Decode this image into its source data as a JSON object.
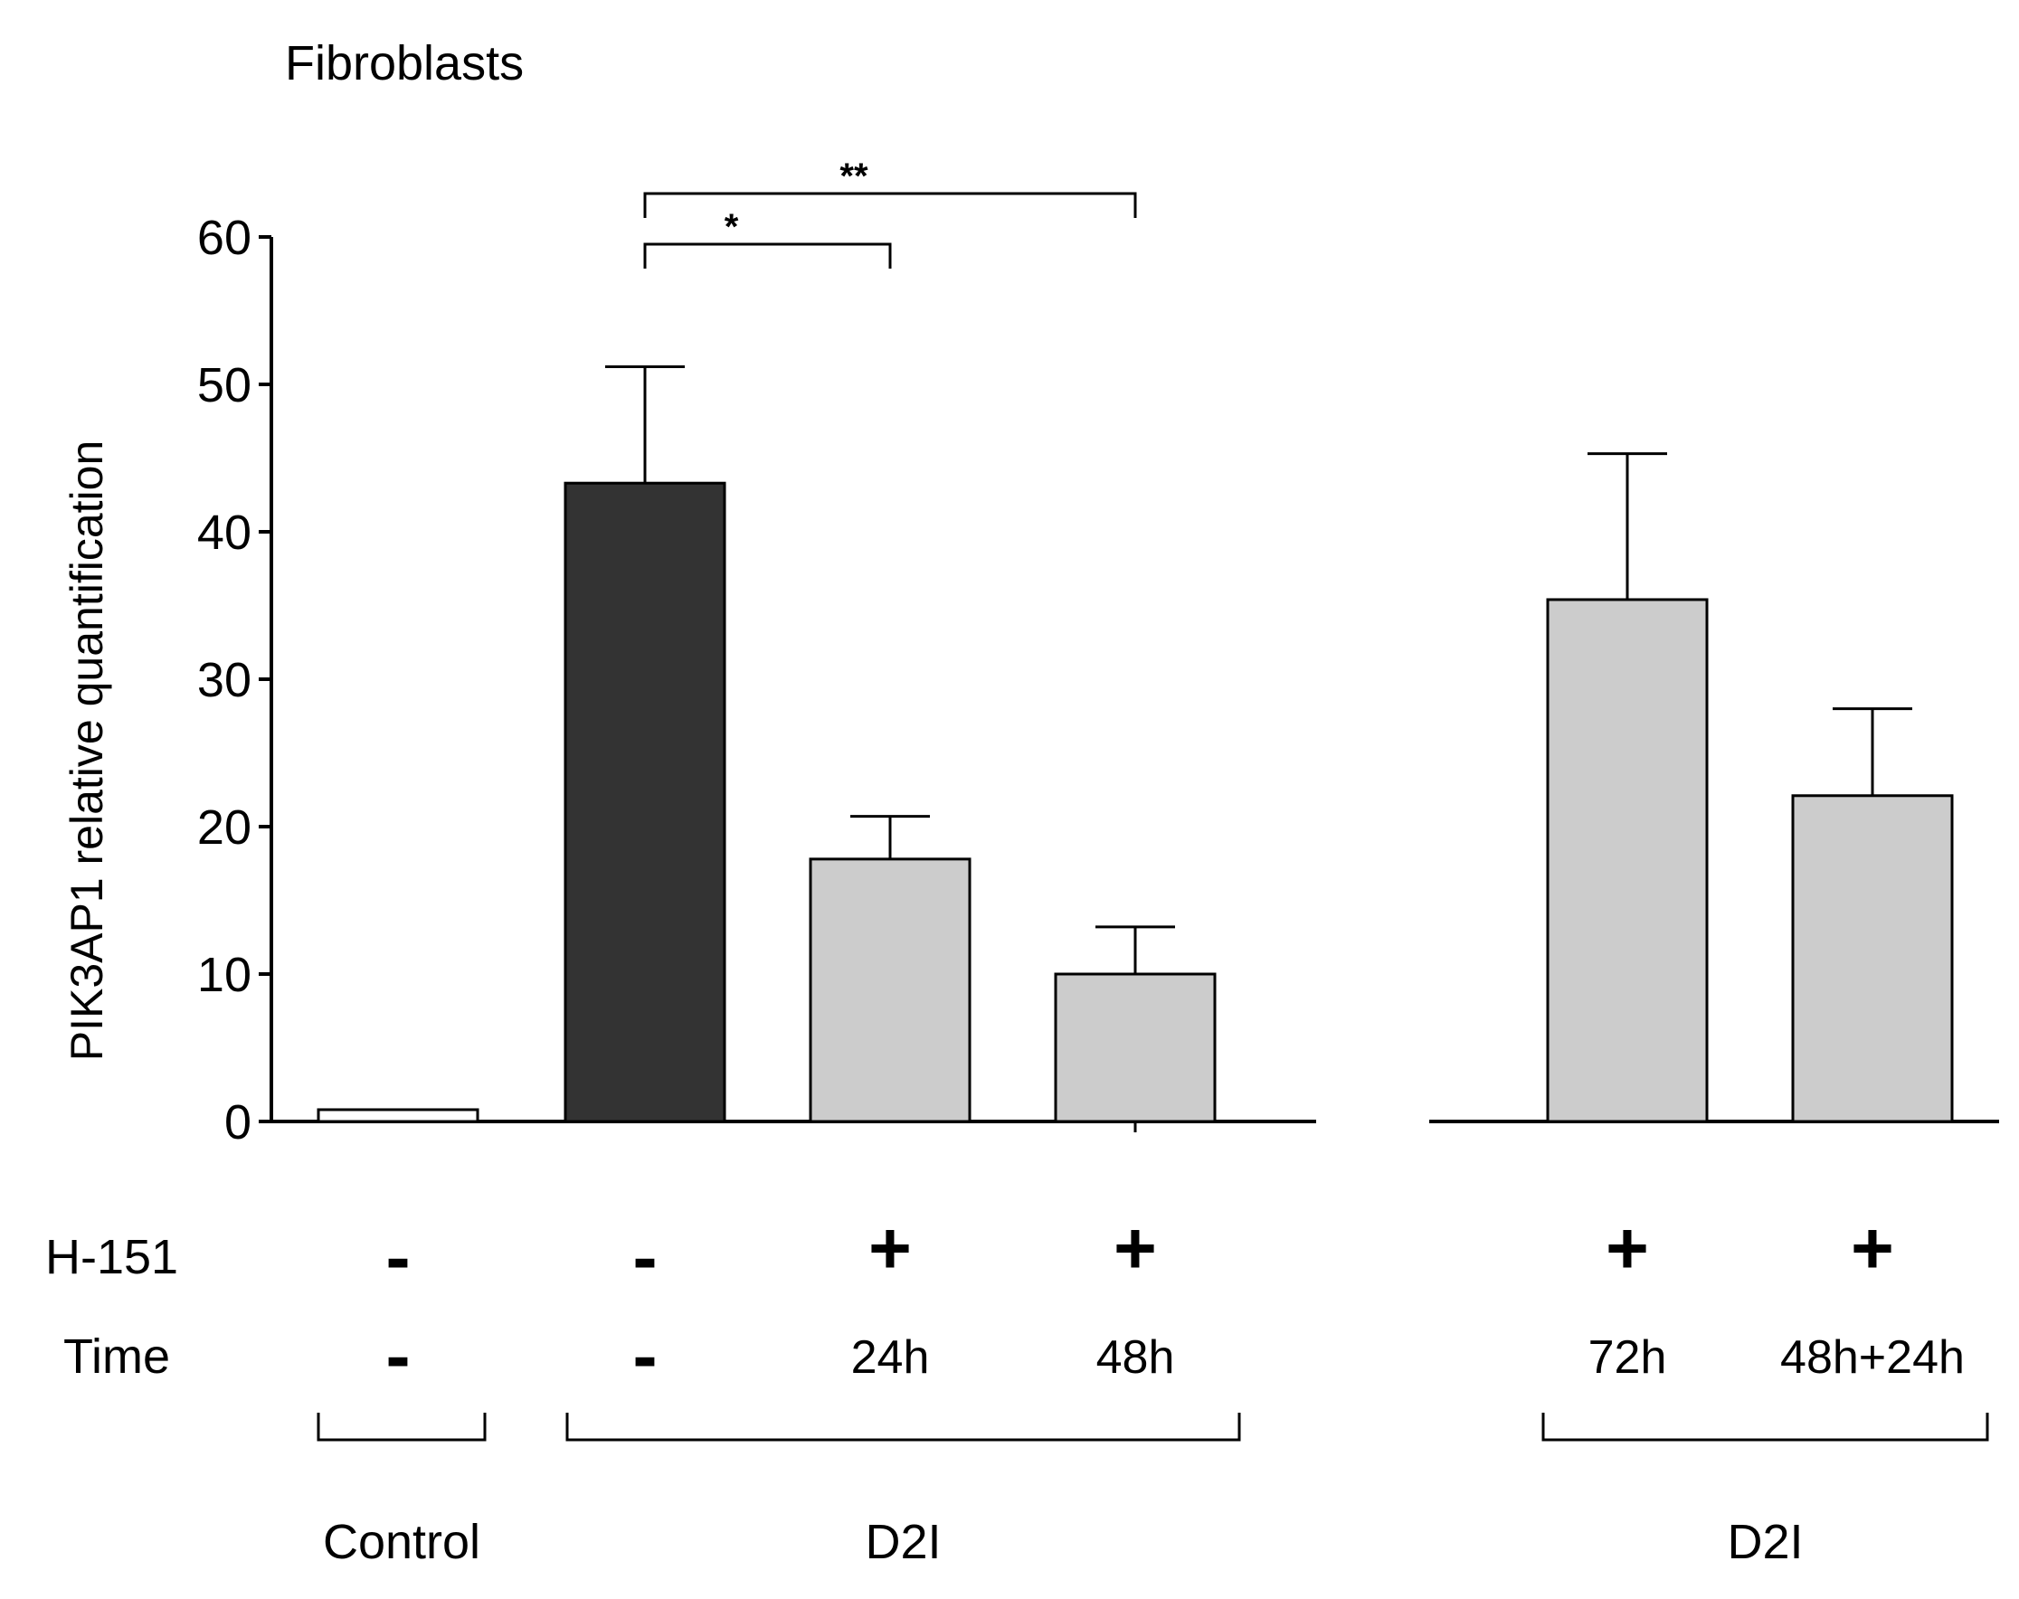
{
  "chart_data": {
    "type": "bar",
    "title": "Fibroblasts",
    "ylabel": "PIK3AP1 relative quantification",
    "xlabel": "",
    "ylim": [
      0,
      60
    ],
    "yticks": [
      0,
      10,
      20,
      30,
      40,
      50,
      60
    ],
    "bars": [
      {
        "name": "control",
        "value": 0.8,
        "error": 0,
        "fill": "#ffffff",
        "h151": "-",
        "time": "-"
      },
      {
        "name": "d2i-untreated",
        "value": 43.3,
        "error": 7.9,
        "fill": "#333333",
        "h151": "-",
        "time": "-"
      },
      {
        "name": "d2i-24h",
        "value": 17.8,
        "error": 2.9,
        "fill": "#cccccc",
        "h151": "+",
        "time": "24h"
      },
      {
        "name": "d2i-48h",
        "value": 10.0,
        "error": 3.2,
        "fill": "#cccccc",
        "h151": "+",
        "time": "48h"
      },
      {
        "name": "d2i-72h",
        "value": 35.4,
        "error": 9.9,
        "fill": "#cccccc",
        "h151": "+",
        "time": "72h"
      },
      {
        "name": "d2i-48h-24h",
        "value": 22.1,
        "error": 5.9,
        "fill": "#cccccc",
        "h151": "+",
        "time": "48h+24h"
      }
    ],
    "row_labels": {
      "h151": "H-151",
      "time": "Time"
    },
    "groups": [
      {
        "label": "Control",
        "bars": [
          0
        ]
      },
      {
        "label": "D2I",
        "bars": [
          1,
          2,
          3
        ]
      },
      {
        "label": "D2I",
        "bars": [
          4,
          5
        ]
      }
    ],
    "significance": [
      {
        "from": 1,
        "to": 2,
        "label": "*"
      },
      {
        "from": 1,
        "to": 3,
        "label": "**"
      }
    ]
  }
}
